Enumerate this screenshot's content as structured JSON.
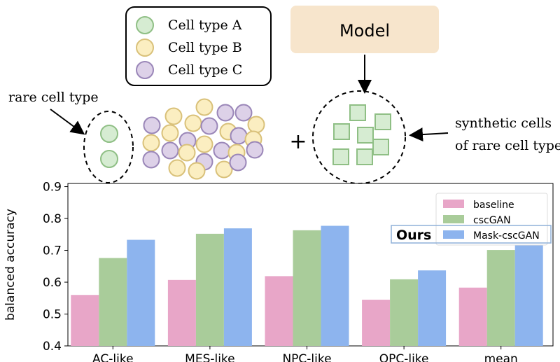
{
  "diagram": {
    "legend": [
      {
        "label": "Cell type A",
        "color": "#d6ecd2",
        "stroke": "#8fbf85"
      },
      {
        "label": "Cell type B",
        "color": "#fbeec1",
        "stroke": "#d9c17a"
      },
      {
        "label": "Cell type C",
        "color": "#ddd1e8",
        "stroke": "#9a86b8"
      }
    ],
    "model_label": "Model",
    "rare_label": "rare cell type",
    "plus": "+",
    "synthetic_label_line1": "synthetic cells",
    "synthetic_label_line2": "of rare cell type"
  },
  "chart_data": {
    "type": "bar",
    "categories": [
      "AC-like",
      "MES-like",
      "NPC-like",
      "OPC-like",
      "mean"
    ],
    "series": [
      {
        "name": "baseline",
        "color": "#e8a6c8",
        "values": [
          0.56,
          0.607,
          0.619,
          0.545,
          0.583
        ]
      },
      {
        "name": "cscGAN",
        "color": "#a9cc9a",
        "values": [
          0.676,
          0.752,
          0.763,
          0.609,
          0.701
        ]
      },
      {
        "name": "Mask-cscGAN",
        "color": "#8db4ee",
        "values": [
          0.733,
          0.769,
          0.777,
          0.637,
          0.729
        ]
      }
    ],
    "ylabel": "balanced accuracy",
    "xlabel": "",
    "ylim": [
      0.4,
      0.91
    ],
    "yticks": [
      0.4,
      0.5,
      0.6,
      0.7,
      0.8,
      0.9
    ],
    "legend_position": "top-right",
    "annotation": "Ours"
  }
}
